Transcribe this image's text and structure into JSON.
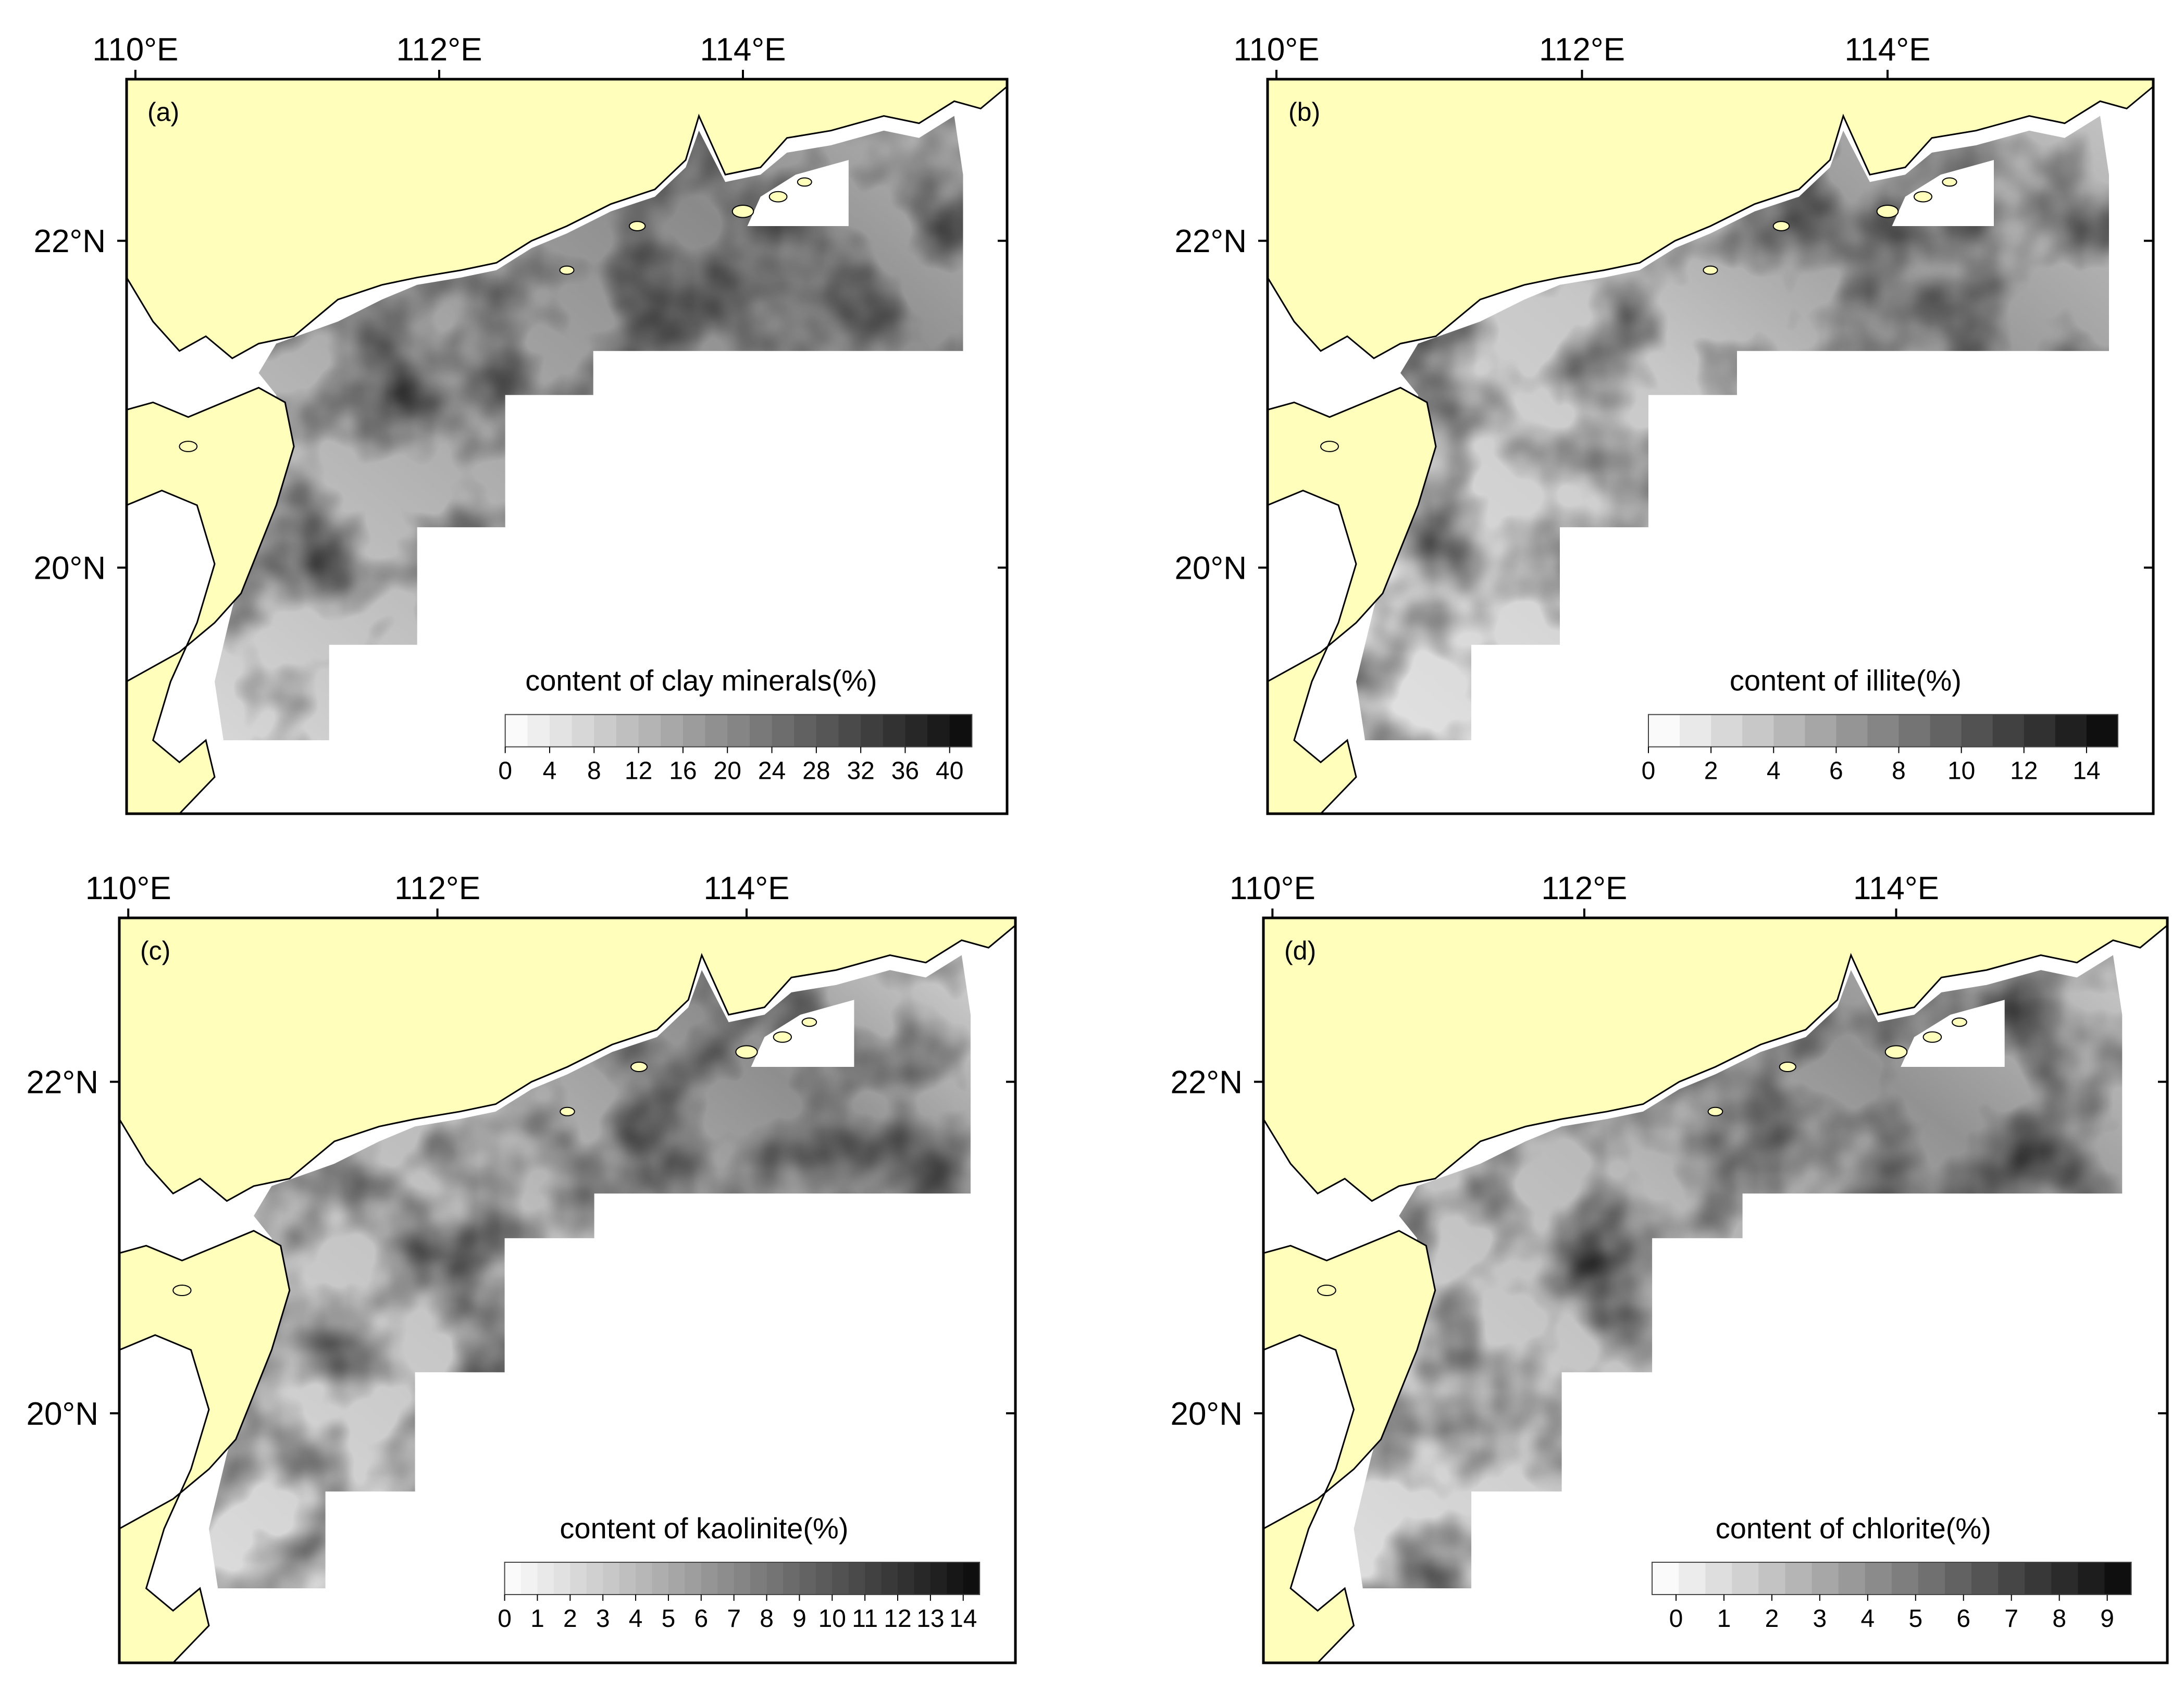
{
  "colors": {
    "land": "#FFFFBB",
    "coast": "#000000",
    "water": "#FFFFFF",
    "frame": "#000000",
    "colorbar_dark": "#111111"
  },
  "axes": {
    "lon_ticks": [
      "110°E",
      "112°E",
      "114°E"
    ],
    "lat_ticks": [
      "22°N",
      "20°N"
    ]
  },
  "panels": [
    {
      "id": "a",
      "label": "(a)",
      "title": "content of clay minerals(%)",
      "tick_labels": [
        "0",
        "4",
        "8",
        "12",
        "16",
        "20",
        "24",
        "28",
        "32",
        "36",
        "40"
      ],
      "range": [
        0,
        42
      ],
      "bins": 21
    },
    {
      "id": "b",
      "label": "(b)",
      "title": "content of illite(%)",
      "tick_labels": [
        "0",
        "2",
        "4",
        "6",
        "8",
        "10",
        "12",
        "14"
      ],
      "range": [
        0,
        15
      ],
      "bins": 15
    },
    {
      "id": "c",
      "label": "(c)",
      "title": "content of kaolinite(%)",
      "tick_labels": [
        "0",
        "1",
        "2",
        "3",
        "4",
        "5",
        "6",
        "7",
        "8",
        "9",
        "10",
        "11",
        "12",
        "13",
        "14"
      ],
      "range": [
        0,
        14.5
      ],
      "bins": 29
    },
    {
      "id": "d",
      "label": "(d)",
      "title": "content of chlorite(%)",
      "tick_labels": [
        "0",
        "1",
        "2",
        "3",
        "4",
        "5",
        "6",
        "7",
        "8",
        "9"
      ],
      "range": [
        -0.5,
        9.5
      ],
      "bins": 18
    }
  ]
}
